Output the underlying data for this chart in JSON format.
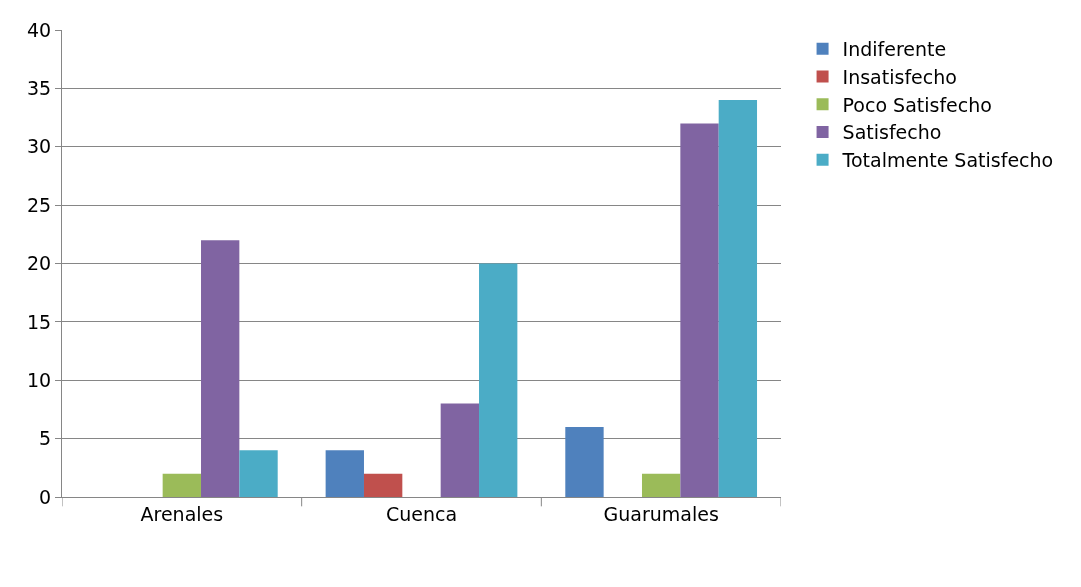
{
  "chart_data": {
    "type": "bar",
    "categories": [
      "Arenales",
      "Cuenca",
      "Guarumales"
    ],
    "series": [
      {
        "name": "Indiferente",
        "color": "#4f81bd",
        "values": [
          0,
          4,
          6
        ]
      },
      {
        "name": "Insatisfecho",
        "color": "#c0504d",
        "values": [
          0,
          2,
          0
        ]
      },
      {
        "name": "Poco Satisfecho",
        "color": "#9bbb59",
        "values": [
          2,
          0,
          2
        ]
      },
      {
        "name": "Satisfecho",
        "color": "#8064a2",
        "values": [
          22,
          8,
          32
        ]
      },
      {
        "name": "Totalmente Satisfecho",
        "color": "#4bacc6",
        "values": [
          4,
          20,
          34
        ]
      }
    ],
    "ylim": [
      0,
      40
    ],
    "yticks": [
      0,
      5,
      10,
      15,
      20,
      25,
      30,
      35,
      40
    ],
    "grid": "y",
    "legend": "right"
  }
}
